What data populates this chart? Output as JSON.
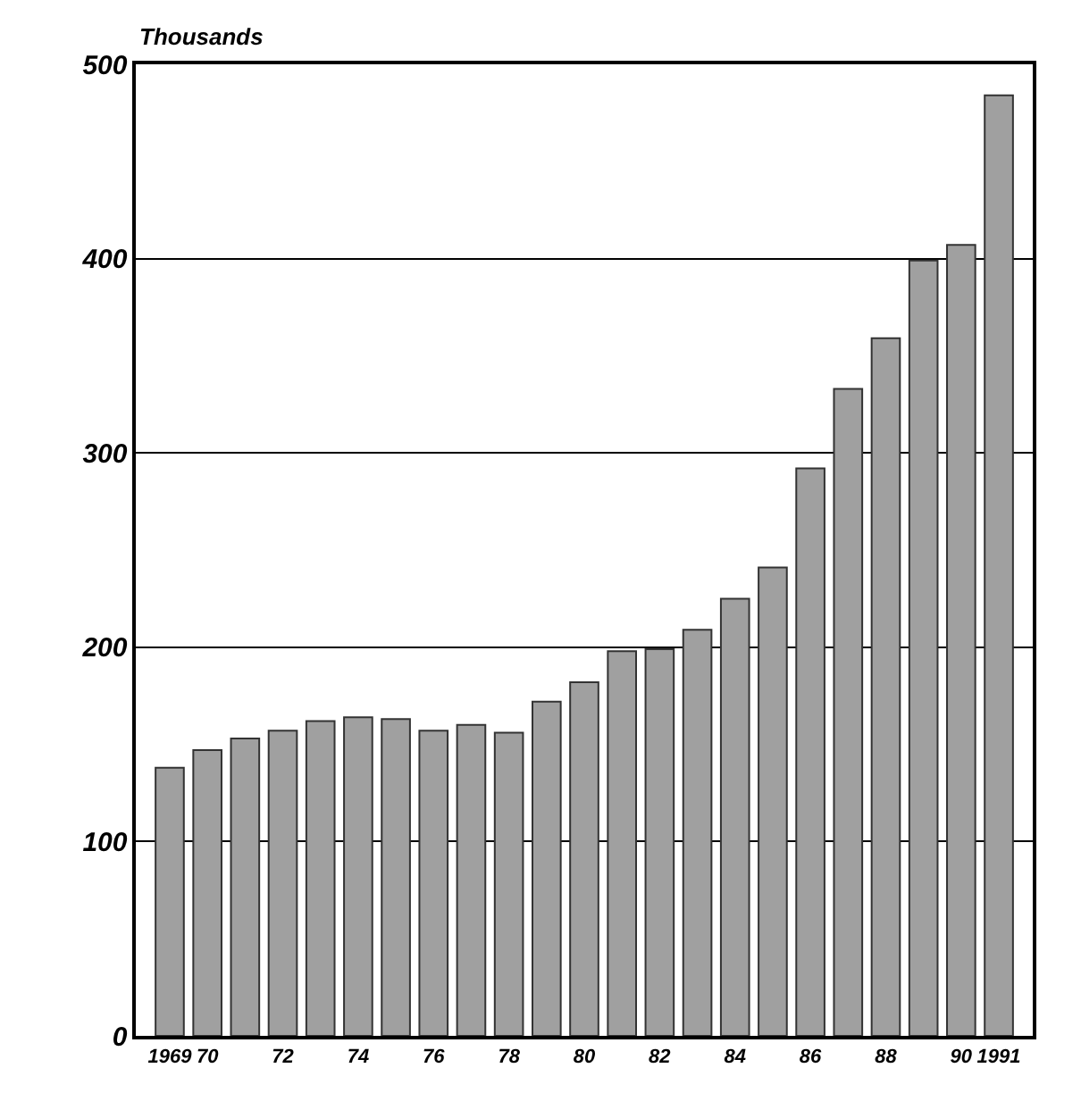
{
  "chart_data": {
    "type": "bar",
    "ylabel": "Thousands",
    "categories": [
      "1969",
      "70",
      null,
      "72",
      null,
      "74",
      null,
      "76",
      null,
      "78",
      null,
      "80",
      null,
      "82",
      null,
      "84",
      null,
      "86",
      null,
      "88",
      null,
      "90",
      "1991"
    ],
    "values": [
      138,
      147,
      153,
      157,
      162,
      164,
      163,
      157,
      160,
      156,
      172,
      182,
      198,
      199,
      209,
      225,
      241,
      292,
      333,
      359,
      399,
      407,
      484
    ],
    "color": "#a0a0a0",
    "ylim": [
      0,
      500
    ],
    "yticks": [
      0,
      100,
      200,
      300,
      400,
      500
    ],
    "grid": "y",
    "legend": false
  }
}
